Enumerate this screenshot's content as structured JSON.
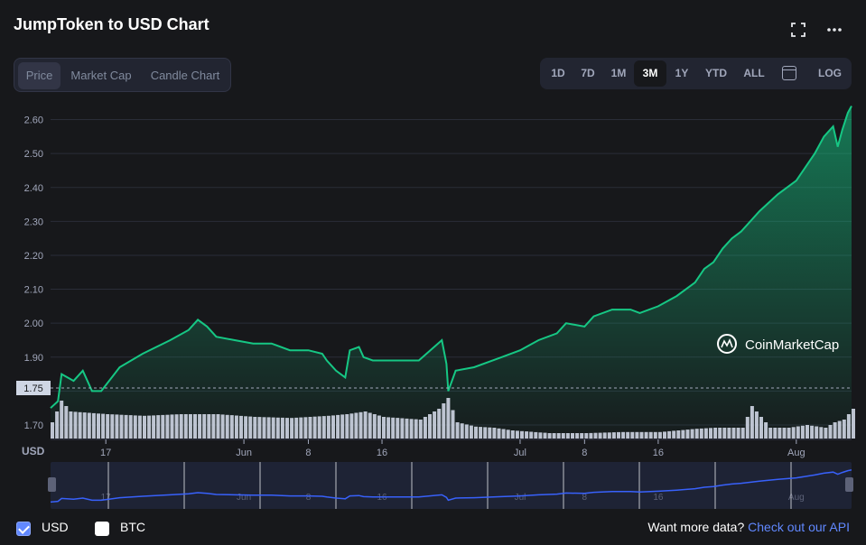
{
  "header": {
    "title": "JumpToken to USD Chart"
  },
  "tabs": [
    "Price",
    "Market Cap",
    "Candle Chart"
  ],
  "active_tab": "Price",
  "ranges": [
    "1D",
    "7D",
    "1M",
    "3M",
    "1Y",
    "YTD",
    "ALL",
    "LOG"
  ],
  "active_range": "3M",
  "icons": {
    "fullscreen": "fullscreen-icon",
    "more": "more-icon",
    "calendar": "calendar-icon",
    "watermark": "coinmarketcap-logo-icon"
  },
  "watermark": "CoinMarketCap",
  "colors": {
    "line": "#16c784",
    "accent": "#6188ff",
    "volume": "#cfd6e4",
    "navigator": "#3861fb"
  },
  "chart_data": {
    "type": "area",
    "currency_label": "USD",
    "price_marker": "1.75",
    "y_ticks": [
      "2.60",
      "2.50",
      "2.40",
      "2.30",
      "2.20",
      "2.10",
      "2.00",
      "1.90",
      "1.80",
      "1.70"
    ],
    "ylim": [
      1.66,
      2.66
    ],
    "x_ticks": [
      {
        "day": 6,
        "label": "17"
      },
      {
        "day": 21,
        "label": "Jun"
      },
      {
        "day": 28,
        "label": "8"
      },
      {
        "day": 36,
        "label": "16"
      },
      {
        "day": 51,
        "label": "Jul"
      },
      {
        "day": 58,
        "label": "8"
      },
      {
        "day": 66,
        "label": "16"
      },
      {
        "day": 81,
        "label": "Aug"
      }
    ],
    "x_range_days": [
      0,
      87
    ],
    "price": {
      "x": [
        0,
        0.8,
        1.2,
        2.5,
        3.5,
        4.5,
        5.5,
        7.5,
        10,
        13,
        15,
        16,
        17,
        18,
        20,
        22,
        24,
        26,
        28,
        29.5,
        30,
        31,
        32,
        32.5,
        33.5,
        34,
        35,
        37,
        40,
        42.5,
        43,
        43.2,
        44,
        46,
        49,
        51,
        53,
        55,
        56,
        58,
        59,
        61,
        63,
        64,
        66,
        68,
        70,
        71,
        72,
        73,
        74,
        75,
        77,
        79,
        81,
        82,
        83,
        84,
        85,
        85.5,
        86,
        86.6,
        87
      ],
      "y": [
        1.75,
        1.77,
        1.85,
        1.83,
        1.86,
        1.8,
        1.8,
        1.87,
        1.91,
        1.95,
        1.98,
        2.01,
        1.99,
        1.96,
        1.95,
        1.94,
        1.94,
        1.92,
        1.92,
        1.91,
        1.89,
        1.86,
        1.84,
        1.92,
        1.93,
        1.9,
        1.89,
        1.89,
        1.89,
        1.95,
        1.88,
        1.8,
        1.86,
        1.87,
        1.9,
        1.92,
        1.95,
        1.97,
        2.0,
        1.99,
        2.02,
        2.04,
        2.04,
        2.03,
        2.05,
        2.08,
        2.12,
        2.16,
        2.18,
        2.22,
        2.25,
        2.27,
        2.33,
        2.38,
        2.42,
        2.46,
        2.5,
        2.55,
        2.58,
        2.52,
        2.57,
        2.62,
        2.64
      ]
    },
    "volume": {
      "x": [
        0,
        1,
        2,
        6,
        10,
        14,
        18,
        22,
        26,
        30,
        32,
        34,
        36,
        40,
        42,
        43,
        44,
        46,
        48,
        50,
        54,
        58,
        62,
        66,
        70,
        72,
        75,
        76,
        78,
        80,
        82,
        84,
        85,
        86,
        87
      ],
      "y": [
        0.3,
        0.7,
        0.5,
        0.45,
        0.42,
        0.45,
        0.45,
        0.4,
        0.38,
        0.42,
        0.45,
        0.5,
        0.4,
        0.35,
        0.55,
        0.75,
        0.3,
        0.22,
        0.2,
        0.15,
        0.1,
        0.1,
        0.12,
        0.12,
        0.18,
        0.2,
        0.2,
        0.6,
        0.2,
        0.2,
        0.25,
        0.2,
        0.3,
        0.35,
        0.55
      ]
    }
  },
  "footer": {
    "usd_label": "USD",
    "btc_label": "BTC",
    "more_text": "Want more data?",
    "api_link": "Check out our API"
  }
}
